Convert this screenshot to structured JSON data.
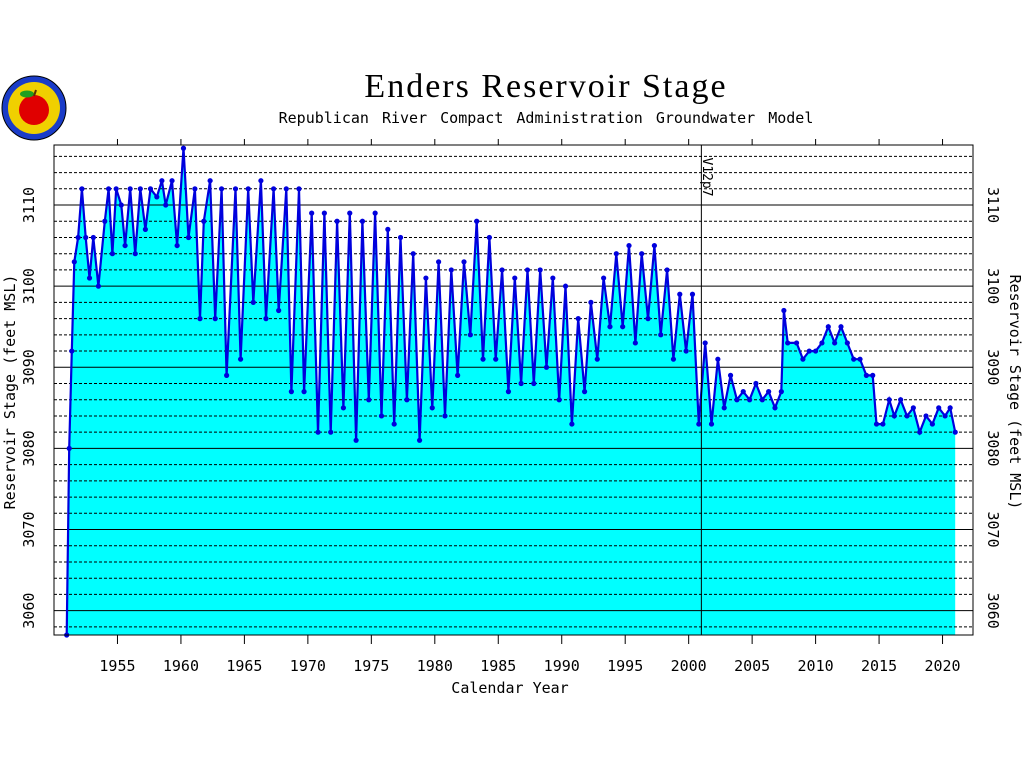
{
  "chart_data": {
    "type": "line",
    "title": "Enders Reservoir Stage",
    "subtitle": "Republican River Compact Administration Groundwater Model",
    "x_label": "Calendar Year",
    "y_label": "Reservoir Stage (feet MSL)",
    "xlim": [
      1950,
      2022.4
    ],
    "ylim": [
      3057,
      3117.4
    ],
    "xticks": [
      1955,
      1960,
      1965,
      1970,
      1975,
      1980,
      1985,
      1990,
      1995,
      2000,
      2005,
      2010,
      2015,
      2020
    ],
    "yticks": [
      3060,
      3070,
      3080,
      3090,
      3100,
      3110
    ],
    "yminorticks": [
      3058,
      3062,
      3064,
      3066,
      3068,
      3072,
      3074,
      3076,
      3078,
      3082,
      3084,
      3086,
      3088,
      3092,
      3094,
      3096,
      3098,
      3102,
      3104,
      3106,
      3108,
      3112,
      3114,
      3116
    ],
    "grid": true,
    "fill_color": "#00ffff",
    "annotations": [
      {
        "text": "V12p7",
        "x": 2001
      }
    ],
    "series": [
      {
        "name": "Reservoir Stage",
        "color": "#0000dd",
        "x": [
          1951.0,
          1951.2,
          1951.4,
          1951.6,
          1951.9,
          1952.2,
          1952.5,
          1952.8,
          1953.1,
          1953.5,
          1954.0,
          1954.3,
          1954.6,
          1954.9,
          1955.3,
          1955.6,
          1956.0,
          1956.4,
          1956.8,
          1957.2,
          1957.6,
          1958.1,
          1958.5,
          1958.8,
          1959.3,
          1959.7,
          1960.2,
          1960.6,
          1961.1,
          1961.5,
          1961.8,
          1962.3,
          1962.7,
          1963.2,
          1963.6,
          1964.3,
          1964.7,
          1965.3,
          1965.7,
          1966.3,
          1966.7,
          1967.3,
          1967.7,
          1968.3,
          1968.7,
          1969.3,
          1969.7,
          1970.3,
          1970.8,
          1971.3,
          1971.8,
          1972.3,
          1972.8,
          1973.3,
          1973.8,
          1974.3,
          1974.8,
          1975.3,
          1975.8,
          1976.3,
          1976.8,
          1977.3,
          1977.8,
          1978.3,
          1978.8,
          1979.3,
          1979.8,
          1980.3,
          1980.8,
          1981.3,
          1981.8,
          1982.3,
          1982.8,
          1983.3,
          1983.8,
          1984.3,
          1984.8,
          1985.3,
          1985.8,
          1986.3,
          1986.8,
          1987.3,
          1987.8,
          1988.3,
          1988.8,
          1989.3,
          1989.8,
          1990.3,
          1990.8,
          1991.3,
          1991.8,
          1992.3,
          1992.8,
          1993.3,
          1993.8,
          1994.3,
          1994.8,
          1995.3,
          1995.8,
          1996.3,
          1996.8,
          1997.3,
          1997.8,
          1998.3,
          1998.8,
          1999.3,
          1999.8,
          2000.3,
          2000.8,
          2001.3,
          2001.8,
          2002.3,
          2002.8,
          2003.3,
          2003.8,
          2004.3,
          2004.8,
          2005.3,
          2005.8,
          2006.3,
          2006.8,
          2007.3,
          2007.5,
          2007.8,
          2008.5,
          2009.0,
          2009.5,
          2010.0,
          2010.5,
          2011.0,
          2011.5,
          2012.0,
          2012.5,
          2013.0,
          2013.5,
          2014.0,
          2014.5,
          2014.8,
          2015.3,
          2015.8,
          2016.2,
          2016.7,
          2017.2,
          2017.7,
          2018.2,
          2018.7,
          2019.2,
          2019.7,
          2020.2,
          2020.6,
          2021.0
        ],
        "values": [
          3057,
          3080,
          3092,
          3103,
          3106,
          3112,
          3106,
          3101,
          3106,
          3100,
          3108,
          3112,
          3104,
          3112,
          3110,
          3105,
          3112,
          3104,
          3112,
          3107,
          3112,
          3111,
          3113,
          3110,
          3113,
          3105,
          3117,
          3106,
          3112,
          3096,
          3108,
          3113,
          3096,
          3112,
          3089,
          3112,
          3091,
          3112,
          3098,
          3113,
          3096,
          3112,
          3097,
          3112,
          3087,
          3112,
          3087,
          3109,
          3082,
          3109,
          3082,
          3108,
          3085,
          3109,
          3081,
          3108,
          3086,
          3109,
          3084,
          3107,
          3083,
          3106,
          3086,
          3104,
          3081,
          3101,
          3085,
          3103,
          3084,
          3102,
          3089,
          3103,
          3094,
          3108,
          3091,
          3106,
          3091,
          3102,
          3087,
          3101,
          3088,
          3102,
          3088,
          3102,
          3090,
          3101,
          3086,
          3100,
          3083,
          3096,
          3087,
          3098,
          3091,
          3101,
          3095,
          3104,
          3095,
          3105,
          3093,
          3104,
          3096,
          3105,
          3094,
          3102,
          3091,
          3099,
          3092,
          3099,
          3083,
          3093,
          3083,
          3091,
          3085,
          3089,
          3086,
          3087,
          3086,
          3088,
          3086,
          3087,
          3085,
          3087,
          3097,
          3093,
          3093,
          3091,
          3092,
          3092,
          3093,
          3095,
          3093,
          3095,
          3093,
          3091,
          3091,
          3089,
          3089,
          3083,
          3083,
          3086,
          3084,
          3086,
          3084,
          3085,
          3082,
          3084,
          3083,
          3085,
          3084,
          3085,
          3082
        ]
      }
    ]
  }
}
